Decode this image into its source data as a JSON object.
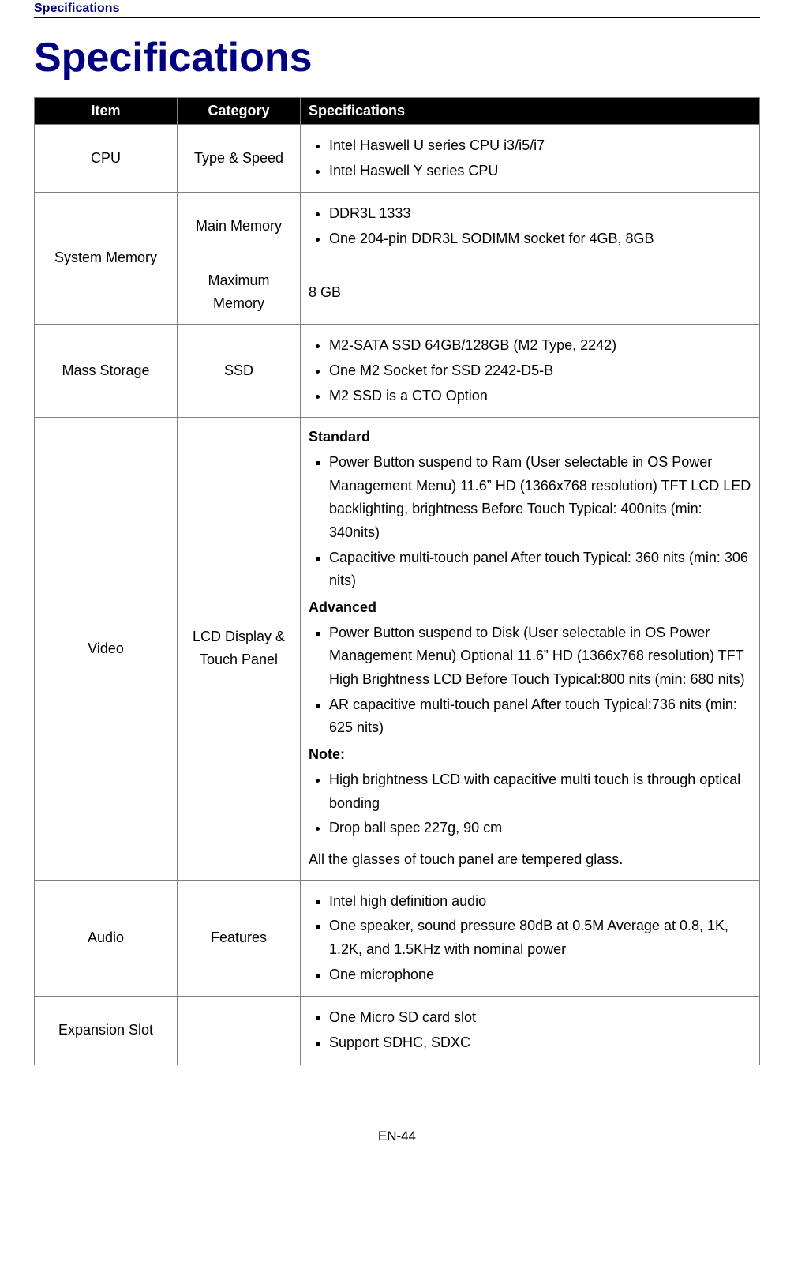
{
  "header_running": "Specifications",
  "page_title": "Specifications",
  "table": {
    "headers": {
      "item": "Item",
      "category": "Category",
      "spec": "Specifications"
    },
    "rows": {
      "cpu": {
        "item": "CPU",
        "category": "Type & Speed",
        "bullets": [
          "Intel Haswell U series CPU i3/i5/i7",
          "Intel Haswell Y series CPU"
        ]
      },
      "mem_main": {
        "item": "System Memory",
        "category": "Main Memory",
        "bullets": [
          "DDR3L 1333",
          "One 204-pin DDR3L SODIMM socket for 4GB, 8GB"
        ]
      },
      "mem_max": {
        "category": "Maximum Memory",
        "value": "8 GB"
      },
      "storage": {
        "item": "Mass Storage",
        "category": "SSD",
        "bullets": [
          "M2-SATA SSD 64GB/128GB (M2 Type, 2242)",
          "One M2 Socket for SSD 2242-D5-B",
          "M2 SSD is a CTO Option"
        ]
      },
      "video": {
        "item": "Video",
        "category": "LCD Display & Touch Panel",
        "standard_heading": "Standard",
        "standard_bullets": [
          "Power Button suspend to Ram (User selectable in OS Power Management Menu) 11.6” HD (1366x768 resolution) TFT LCD LED backlighting, brightness Before Touch Typical: 400nits (min: 340nits)",
          "Capacitive multi-touch panel  After touch Typical: 360 nits (min: 306 nits)"
        ],
        "advanced_heading": "Advanced",
        "advanced_bullets": [
          "Power Button suspend to Disk (User selectable in OS Power Management Menu) Optional 11.6” HD (1366x768 resolution) TFT High Brightness LCD Before Touch Typical:800 nits (min: 680 nits)",
          "AR capacitive multi-touch panel  After touch Typical:736 nits (min: 625  nits)"
        ],
        "note_heading": "Note:",
        "note_bullets": [
          "High brightness LCD with capacitive multi touch is through optical bonding",
          "Drop ball spec 227g, 90 cm"
        ],
        "closing_line": "All the glasses of touch panel are tempered glass."
      },
      "audio": {
        "item": "Audio",
        "category": "Features",
        "bullets": [
          "Intel high definition audio",
          "One speaker, sound pressure 80dB at 0.5M Average at 0.8, 1K, 1.2K, and 1.5KHz with nominal power",
          "One microphone"
        ]
      },
      "expansion": {
        "item": "Expansion Slot",
        "category": "",
        "bullets": [
          "One Micro SD card slot",
          "Support SDHC, SDXC"
        ]
      }
    }
  },
  "footer": "EN-44",
  "style": {
    "accent_color": "#000080",
    "header_bg": "#000000",
    "header_fg": "#ffffff",
    "border_color": "#808080",
    "body_fontsize_pt": 13
  }
}
